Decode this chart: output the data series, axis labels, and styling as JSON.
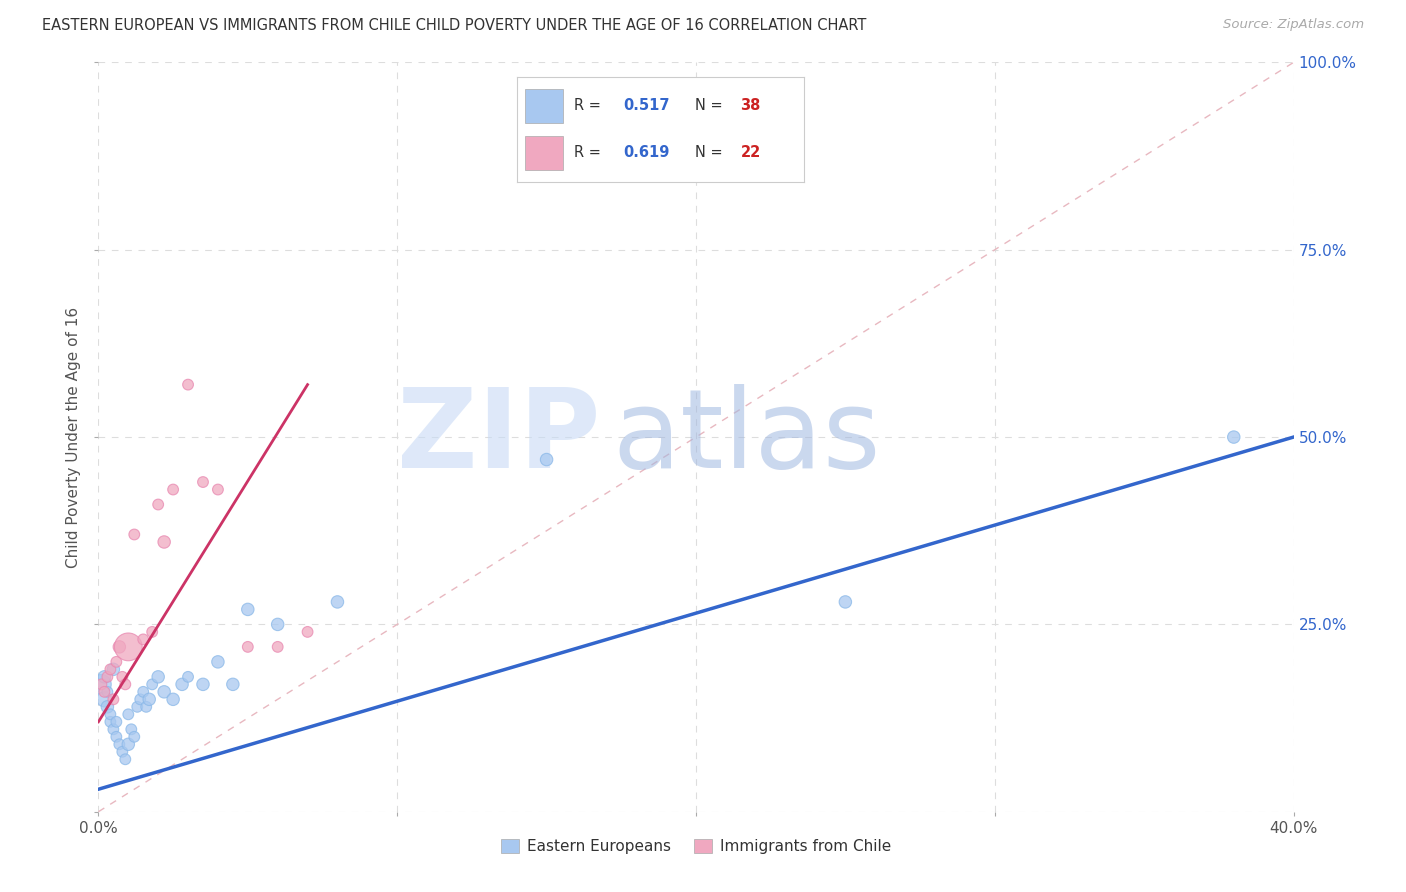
{
  "title": "EASTERN EUROPEAN VS IMMIGRANTS FROM CHILE CHILD POVERTY UNDER THE AGE OF 16 CORRELATION CHART",
  "source": "Source: ZipAtlas.com",
  "ylabel": "Child Poverty Under the Age of 16",
  "xlabel_eastern": "Eastern Europeans",
  "xlabel_chile": "Immigrants from Chile",
  "xlim": [
    0.0,
    0.4
  ],
  "ylim": [
    0.0,
    1.0
  ],
  "xticks_shown": [
    0.0,
    0.4
  ],
  "xtick_grid": [
    0.0,
    0.1,
    0.2,
    0.3,
    0.4
  ],
  "yticks": [
    0.0,
    0.25,
    0.5,
    0.75,
    1.0
  ],
  "xtick_labels_shown": [
    "0.0%",
    "40.0%"
  ],
  "ytick_labels": [
    "",
    "25.0%",
    "50.0%",
    "75.0%",
    "100.0%"
  ],
  "grid_color": "#dddddd",
  "background_color": "#ffffff",
  "watermark_zip": "ZIP",
  "watermark_atlas": "atlas",
  "watermark_color_zip": "#c5d8f0",
  "watermark_color_atlas": "#a8c8e8",
  "legend1_r": "0.517",
  "legend1_n": "38",
  "legend2_r": "0.619",
  "legend2_n": "22",
  "blue_color": "#a8c8f0",
  "blue_color_fill": "#a8c8f0",
  "blue_line_color": "#3366cc",
  "pink_color": "#f0a8c0",
  "pink_line_color": "#cc3366",
  "blue_scatter_x": [
    0.001,
    0.002,
    0.002,
    0.003,
    0.003,
    0.004,
    0.004,
    0.005,
    0.005,
    0.006,
    0.006,
    0.007,
    0.008,
    0.009,
    0.01,
    0.01,
    0.011,
    0.012,
    0.013,
    0.014,
    0.015,
    0.016,
    0.017,
    0.018,
    0.02,
    0.022,
    0.025,
    0.028,
    0.03,
    0.035,
    0.04,
    0.045,
    0.05,
    0.06,
    0.08,
    0.15,
    0.25,
    0.38
  ],
  "blue_scatter_y": [
    0.17,
    0.15,
    0.18,
    0.14,
    0.16,
    0.12,
    0.13,
    0.11,
    0.19,
    0.1,
    0.12,
    0.09,
    0.08,
    0.07,
    0.09,
    0.13,
    0.11,
    0.1,
    0.14,
    0.15,
    0.16,
    0.14,
    0.15,
    0.17,
    0.18,
    0.16,
    0.15,
    0.17,
    0.18,
    0.17,
    0.2,
    0.17,
    0.27,
    0.25,
    0.28,
    0.47,
    0.28,
    0.5
  ],
  "blue_scatter_size": [
    200,
    120,
    80,
    80,
    60,
    60,
    60,
    60,
    80,
    60,
    60,
    60,
    60,
    60,
    80,
    60,
    60,
    60,
    60,
    60,
    60,
    60,
    80,
    60,
    80,
    80,
    80,
    80,
    60,
    80,
    80,
    80,
    80,
    80,
    80,
    80,
    80,
    80
  ],
  "pink_scatter_x": [
    0.001,
    0.002,
    0.003,
    0.004,
    0.005,
    0.006,
    0.007,
    0.008,
    0.009,
    0.01,
    0.012,
    0.015,
    0.018,
    0.02,
    0.022,
    0.025,
    0.03,
    0.035,
    0.04,
    0.05,
    0.06,
    0.07
  ],
  "pink_scatter_y": [
    0.17,
    0.16,
    0.18,
    0.19,
    0.15,
    0.2,
    0.22,
    0.18,
    0.17,
    0.22,
    0.37,
    0.23,
    0.24,
    0.41,
    0.36,
    0.43,
    0.57,
    0.44,
    0.43,
    0.22,
    0.22,
    0.24
  ],
  "pink_scatter_size": [
    60,
    60,
    60,
    60,
    60,
    60,
    80,
    60,
    60,
    400,
    60,
    60,
    60,
    60,
    80,
    60,
    60,
    60,
    60,
    60,
    60,
    60
  ],
  "blue_line_x0": 0.0,
  "blue_line_y0": 0.03,
  "blue_line_x1": 0.4,
  "blue_line_y1": 0.5,
  "pink_line_x0": 0.0,
  "pink_line_y0": 0.12,
  "pink_line_x1": 0.07,
  "pink_line_y1": 0.57
}
